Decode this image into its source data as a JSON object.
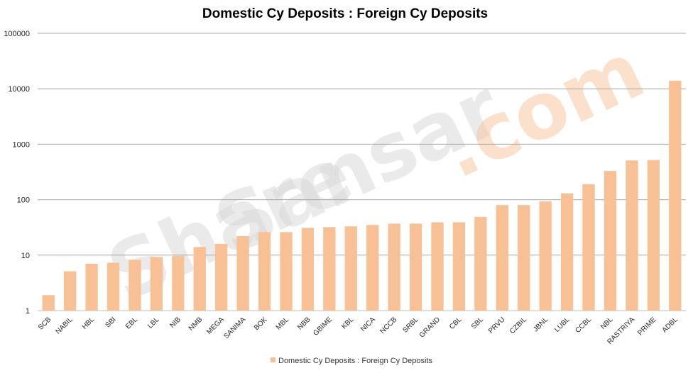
{
  "watermark": {
    "part1": "Share",
    "part2": "Sansar",
    "part3": ".com"
  },
  "chart_data": {
    "type": "bar",
    "title": "Domestic Cy Deposits : Foreign Cy Deposits",
    "y_scale": "log",
    "ylim": [
      1,
      100000
    ],
    "y_ticks": [
      "1",
      "10",
      "100",
      "1000",
      "10000",
      "100000"
    ],
    "grid": true,
    "legend_position": "bottom",
    "categories": [
      "SCB",
      "NABIL",
      "HBL",
      "SBI",
      "EBL",
      "LBL",
      "NIB",
      "NMB",
      "MEGA",
      "SANIMA",
      "BOK",
      "MBL",
      "NBB",
      "GBIME",
      "KBL",
      "NICA",
      "NCCB",
      "SRBL",
      "GRAND",
      "CBL",
      "SBL",
      "PRVU",
      "CZBIL",
      "JBNL",
      "LUBL",
      "CCBL",
      "NBL",
      "RASTRIYA",
      "PRIME",
      "ADBL"
    ],
    "series": [
      {
        "name": "Domestic Cy Deposits : Foreign Cy Deposits",
        "color": "#f8c195",
        "values": [
          1.9,
          5.1,
          7,
          7.3,
          8.2,
          9.3,
          9.6,
          14,
          16,
          22,
          26,
          26,
          31,
          32,
          33,
          35,
          37,
          37,
          39,
          39,
          49,
          80,
          80,
          93,
          130,
          190,
          330,
          510,
          520,
          14000
        ]
      }
    ]
  }
}
